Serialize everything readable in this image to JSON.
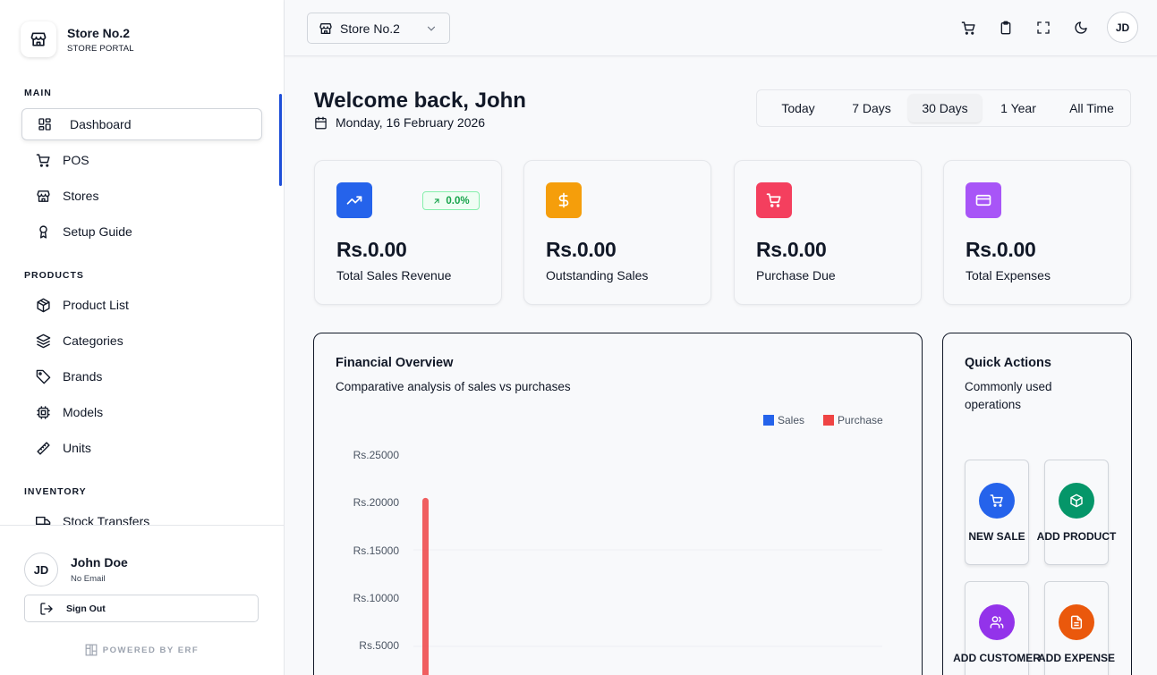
{
  "brand": {
    "title": "Store No.2",
    "subtitle": "STORE PORTAL"
  },
  "nav": {
    "sections": [
      {
        "label": "MAIN",
        "items": [
          {
            "label": "Dashboard",
            "icon": "dashboard-icon",
            "active": true
          },
          {
            "label": "POS",
            "icon": "cart-icon"
          },
          {
            "label": "Stores",
            "icon": "store-icon"
          },
          {
            "label": "Setup Guide",
            "icon": "award-icon"
          }
        ]
      },
      {
        "label": "PRODUCTS",
        "items": [
          {
            "label": "Product List",
            "icon": "box-icon"
          },
          {
            "label": "Categories",
            "icon": "layers-icon"
          },
          {
            "label": "Brands",
            "icon": "tag-icon"
          },
          {
            "label": "Models",
            "icon": "cpu-icon"
          },
          {
            "label": "Units",
            "icon": "ruler-icon"
          }
        ]
      },
      {
        "label": "INVENTORY",
        "items": [
          {
            "label": "Stock Transfers",
            "icon": "truck-icon"
          }
        ]
      }
    ]
  },
  "user": {
    "initials": "JD",
    "name": "John Doe",
    "email": "No Email",
    "signout_label": "Sign Out"
  },
  "powered_by": "POWERED BY ERF",
  "topbar": {
    "store_selected": "Store No.2",
    "avatar_initials": "JD"
  },
  "welcome": {
    "title": "Welcome back, John",
    "date": "Monday, 16 February 2026"
  },
  "range_tabs": [
    {
      "label": "Today"
    },
    {
      "label": "7 Days"
    },
    {
      "label": "30 Days",
      "active": true
    },
    {
      "label": "1 Year"
    },
    {
      "label": "All Time"
    }
  ],
  "kpis": [
    {
      "value": "Rs.0.00",
      "label": "Total Sales Revenue",
      "color": "#2563eb",
      "icon": "trending-up-icon",
      "badge": "0.0%"
    },
    {
      "value": "Rs.0.00",
      "label": "Outstanding Sales",
      "color": "#f59e0b",
      "icon": "dollar-icon"
    },
    {
      "value": "Rs.0.00",
      "label": "Purchase Due",
      "color": "#f43f5e",
      "icon": "cart-icon"
    },
    {
      "value": "Rs.0.00",
      "label": "Total Expenses",
      "color": "#a855f7",
      "icon": "credit-card-icon"
    }
  ],
  "financial": {
    "title": "Financial Overview",
    "subtitle": "Comparative analysis of sales vs purchases"
  },
  "chart_data": {
    "type": "bar",
    "series": [
      {
        "name": "Sales",
        "color": "#2563eb",
        "values": [
          0
        ]
      },
      {
        "name": "Purchase",
        "color": "#ef4444",
        "values": [
          20500
        ]
      }
    ],
    "yticks": [
      "Rs.25000",
      "Rs.20000",
      "Rs.15000",
      "Rs.10000",
      "Rs.5000"
    ],
    "ylim": [
      0,
      25000
    ],
    "legend_position": "top-right"
  },
  "quick_actions": {
    "title": "Quick Actions",
    "subtitle": "Commonly used operations",
    "items": [
      {
        "label": "NEW SALE",
        "color": "#2563eb",
        "icon": "cart-icon"
      },
      {
        "label": "ADD PRODUCT",
        "color": "#059669",
        "icon": "box-icon"
      },
      {
        "label": "ADD CUSTOMER",
        "color": "#9333ea",
        "icon": "users-icon"
      },
      {
        "label": "ADD EXPENSE",
        "color": "#ea580c",
        "icon": "file-icon"
      }
    ]
  }
}
